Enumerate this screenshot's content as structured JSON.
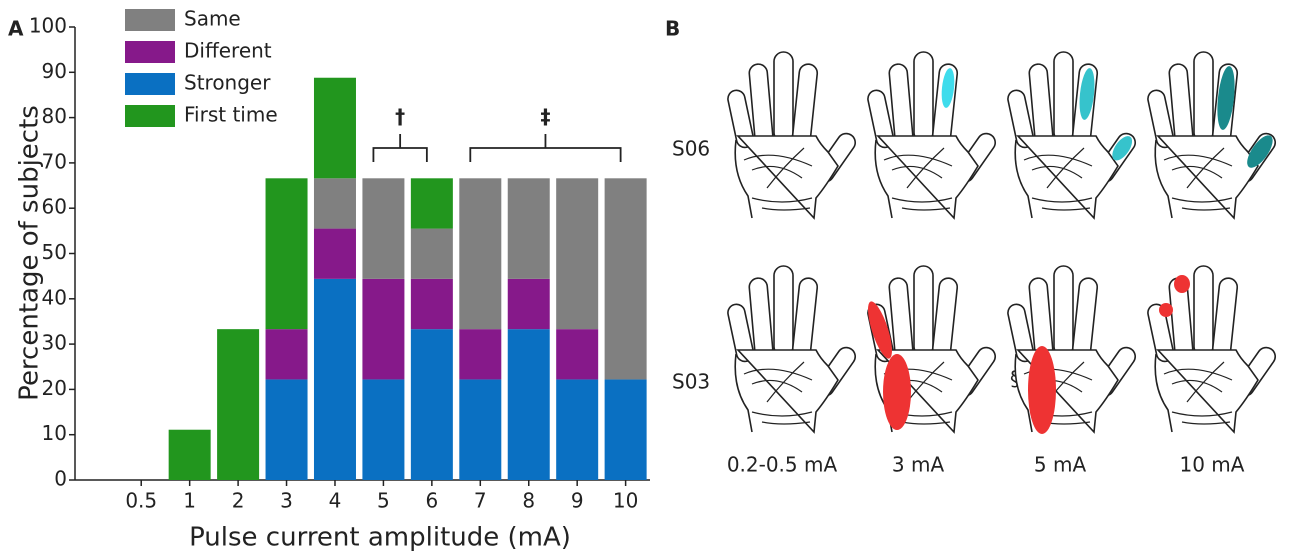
{
  "chart_data": {
    "type": "bar",
    "stacked": true,
    "panel_label": "A",
    "ylabel": "Percentage of subjects",
    "xlabel": "Pulse current amplitude (mA)",
    "categories": [
      "0.5",
      "1",
      "2",
      "3",
      "4",
      "5",
      "6",
      "7",
      "8",
      "9",
      "10"
    ],
    "series": [
      {
        "name": "Same",
        "color": "#808080",
        "values": [
          0,
          0,
          0,
          0,
          11.1,
          22.2,
          11.1,
          33.3,
          22.2,
          33.3,
          44.4
        ]
      },
      {
        "name": "Different",
        "color": "#86198a",
        "values": [
          0,
          0,
          0,
          11.1,
          11.1,
          22.2,
          11.1,
          11.1,
          11.1,
          11.1,
          0
        ]
      },
      {
        "name": "Stronger",
        "color": "#0a70c2",
        "values": [
          0,
          0,
          0,
          22.2,
          44.4,
          22.2,
          33.3,
          22.2,
          33.3,
          22.2,
          22.2
        ]
      },
      {
        "name": "First time",
        "color": "#22961e",
        "values": [
          0,
          11.1,
          33.3,
          33.3,
          22.2,
          0,
          11.1,
          0,
          0,
          0,
          0
        ]
      }
    ],
    "ylim": [
      0,
      100
    ],
    "yticks": [
      0,
      10,
      20,
      30,
      40,
      50,
      60,
      70,
      80,
      90,
      100
    ],
    "annotations": [
      "†",
      "‡"
    ]
  },
  "panel_b": {
    "label": "B",
    "rows": [
      "S06",
      "S03"
    ],
    "columns": [
      "0.2-0.5 mA",
      "3 mA",
      "5 mA",
      "10 mA"
    ],
    "note": "§"
  }
}
